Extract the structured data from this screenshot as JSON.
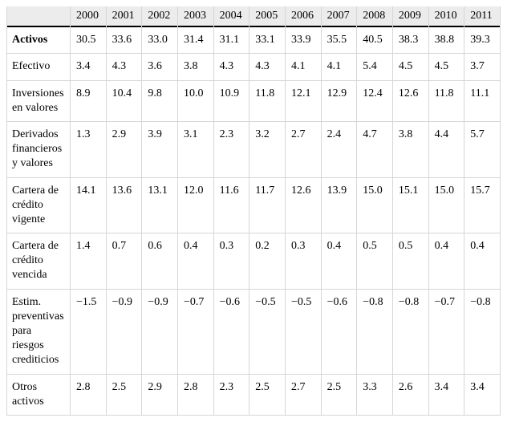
{
  "table": {
    "corner_label": "",
    "columns": [
      "2000",
      "2001",
      "2002",
      "2003",
      "2004",
      "2005",
      "2006",
      "2007",
      "2008",
      "2009",
      "2010",
      "2011"
    ],
    "rows": [
      {
        "label": "Activos",
        "emphasis": "bold",
        "values": [
          "30.5",
          "33.6",
          "33.0",
          "31.4",
          "31.1",
          "33.1",
          "33.9",
          "35.5",
          "40.5",
          "38.3",
          "38.8",
          "39.3"
        ]
      },
      {
        "label": "Efectivo",
        "emphasis": "normal",
        "values": [
          "3.4",
          "4.3",
          "3.6",
          "3.8",
          "4.3",
          "4.3",
          "4.1",
          "4.1",
          "5.4",
          "4.5",
          "4.5",
          "3.7"
        ]
      },
      {
        "label": "Inversiones en valores",
        "emphasis": "normal",
        "values": [
          "8.9",
          "10.4",
          "9.8",
          "10.0",
          "10.9",
          "11.8",
          "12.1",
          "12.9",
          "12.4",
          "12.6",
          "11.8",
          "11.1"
        ]
      },
      {
        "label": "Derivados financieros y valores",
        "emphasis": "normal",
        "values": [
          "1.3",
          "2.9",
          "3.9",
          "3.1",
          "2.3",
          "3.2",
          "2.7",
          "2.4",
          "4.7",
          "3.8",
          "4.4",
          "5.7"
        ]
      },
      {
        "label": "Cartera de crédito vigente",
        "emphasis": "normal",
        "values": [
          "14.1",
          "13.6",
          "13.1",
          "12.0",
          "11.6",
          "11.7",
          "12.6",
          "13.9",
          "15.0",
          "15.1",
          "15.0",
          "15.7"
        ]
      },
      {
        "label": "Cartera de crédito vencida",
        "emphasis": "normal",
        "values": [
          "1.4",
          "0.7",
          "0.6",
          "0.4",
          "0.3",
          "0.2",
          "0.3",
          "0.4",
          "0.5",
          "0.5",
          "0.4",
          "0.4"
        ]
      },
      {
        "label": "Estim. preventivas para riesgos crediticios",
        "emphasis": "normal",
        "values": [
          "−1.5",
          "−0.9",
          "−0.9",
          "−0.7",
          "−0.6",
          "−0.5",
          "−0.5",
          "−0.6",
          "−0.8",
          "−0.8",
          "−0.7",
          "−0.8"
        ]
      },
      {
        "label": "Otros activos",
        "emphasis": "normal",
        "values": [
          "2.8",
          "2.5",
          "2.9",
          "2.8",
          "2.3",
          "2.5",
          "2.7",
          "2.5",
          "3.3",
          "2.6",
          "3.4",
          "3.4"
        ]
      }
    ]
  },
  "colors": {
    "header_bg": "#ececec",
    "header_rule": "#000000",
    "grid_line": "#d6d6d6",
    "text": "#000000",
    "background": "#ffffff"
  },
  "chart_data": {
    "type": "table",
    "title": "",
    "categories": [
      2000,
      2001,
      2002,
      2003,
      2004,
      2005,
      2006,
      2007,
      2008,
      2009,
      2010,
      2011
    ],
    "series": [
      {
        "name": "Activos",
        "values": [
          30.5,
          33.6,
          33.0,
          31.4,
          31.1,
          33.1,
          33.9,
          35.5,
          40.5,
          38.3,
          38.8,
          39.3
        ]
      },
      {
        "name": "Efectivo",
        "values": [
          3.4,
          4.3,
          3.6,
          3.8,
          4.3,
          4.3,
          4.1,
          4.1,
          5.4,
          4.5,
          4.5,
          3.7
        ]
      },
      {
        "name": "Inversiones en valores",
        "values": [
          8.9,
          10.4,
          9.8,
          10.0,
          10.9,
          11.8,
          12.1,
          12.9,
          12.4,
          12.6,
          11.8,
          11.1
        ]
      },
      {
        "name": "Derivados financieros y valores",
        "values": [
          1.3,
          2.9,
          3.9,
          3.1,
          2.3,
          3.2,
          2.7,
          2.4,
          4.7,
          3.8,
          4.4,
          5.7
        ]
      },
      {
        "name": "Cartera de crédito vigente",
        "values": [
          14.1,
          13.6,
          13.1,
          12.0,
          11.6,
          11.7,
          12.6,
          13.9,
          15.0,
          15.1,
          15.0,
          15.7
        ]
      },
      {
        "name": "Cartera de crédito vencida",
        "values": [
          1.4,
          0.7,
          0.6,
          0.4,
          0.3,
          0.2,
          0.3,
          0.4,
          0.5,
          0.5,
          0.4,
          0.4
        ]
      },
      {
        "name": "Estim. preventivas para riesgos crediticios",
        "values": [
          -1.5,
          -0.9,
          -0.9,
          -0.7,
          -0.6,
          -0.5,
          -0.5,
          -0.6,
          -0.8,
          -0.8,
          -0.7,
          -0.8
        ]
      },
      {
        "name": "Otros activos",
        "values": [
          2.8,
          2.5,
          2.9,
          2.8,
          2.3,
          2.5,
          2.7,
          2.5,
          3.3,
          2.6,
          3.4,
          3.4
        ]
      }
    ]
  }
}
